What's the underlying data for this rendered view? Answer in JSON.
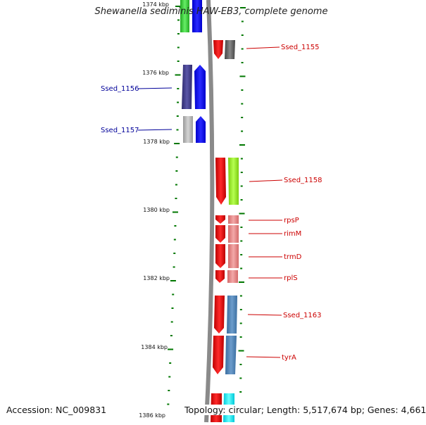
{
  "title": "Shewanella sediminis HAW-EB3, complete genome",
  "accession": "Accession: NC_009831",
  "topology": "Topology: circular; Length: 5,517,674 bp; Genes: 4,661",
  "ruler": [
    "1374 kbp",
    "1376 kbp",
    "1378 kbp",
    "1380 kbp",
    "1382 kbp",
    "1384 kbp",
    "1386 kbp"
  ],
  "genes": [
    {
      "label": "Ssed_1155",
      "color": "#cc0000"
    },
    {
      "label": "Ssed_1156",
      "color": "#000099"
    },
    {
      "label": "Ssed_1157",
      "color": "#000099"
    },
    {
      "label": "Ssed_1158",
      "color": "#cc0000"
    },
    {
      "label": "rpsP",
      "color": "#cc0000"
    },
    {
      "label": "rimM",
      "color": "#cc0000"
    },
    {
      "label": "trmD",
      "color": "#cc0000"
    },
    {
      "label": "rplS",
      "color": "#cc0000"
    },
    {
      "label": "Ssed_1163",
      "color": "#cc0000"
    },
    {
      "label": "tyrA",
      "color": "#cc0000"
    }
  ],
  "colors": {
    "tick": "#007700",
    "backbone": "#8a8a8a",
    "forward": "#0000ff",
    "reverse": "#ee0000"
  }
}
